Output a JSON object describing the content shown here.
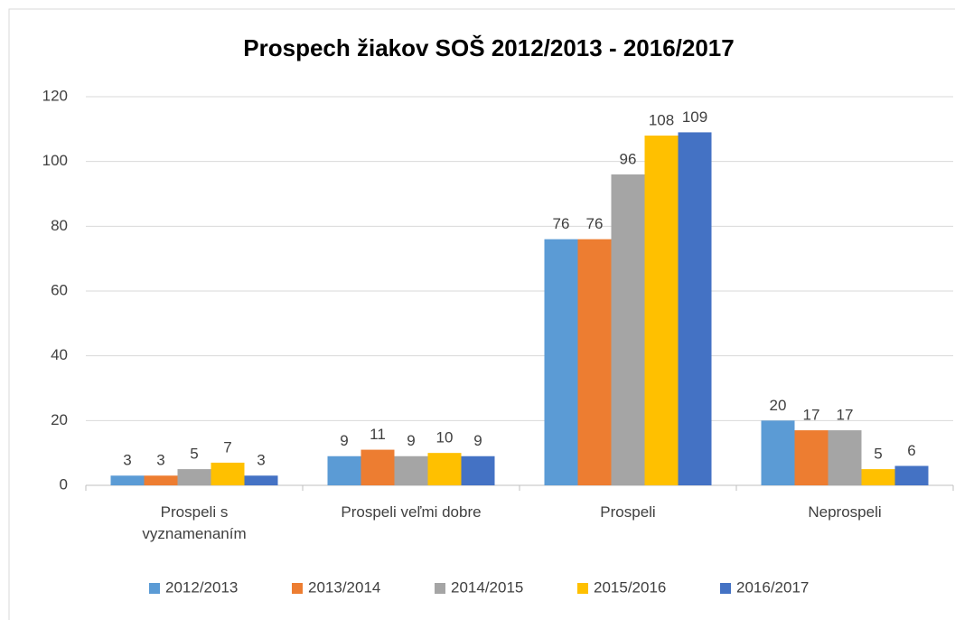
{
  "chart_data": {
    "type": "bar",
    "title": "Prospech žiakov SOŠ 2012/2013 - 2016/2017",
    "categories": [
      "Prospeli s vyznamenaním",
      "Prospeli veľmi dobre",
      "Prospeli",
      "Neprospeli"
    ],
    "series": [
      {
        "name": "2012/2013",
        "color": "#5b9bd5",
        "values": [
          3,
          9,
          76,
          20
        ]
      },
      {
        "name": "2013/2014",
        "color": "#ed7d31",
        "values": [
          3,
          11,
          76,
          17
        ]
      },
      {
        "name": "2014/2015",
        "color": "#a5a5a5",
        "values": [
          5,
          9,
          96,
          17
        ]
      },
      {
        "name": "2015/2016",
        "color": "#ffc000",
        "values": [
          7,
          10,
          108,
          5
        ]
      },
      {
        "name": "2016/2017",
        "color": "#4472c4",
        "values": [
          3,
          9,
          109,
          6
        ]
      }
    ],
    "ylim": [
      0,
      120
    ],
    "yticks": [
      0,
      20,
      40,
      60,
      80,
      100,
      120
    ],
    "grid": true,
    "legend": "bottom"
  }
}
